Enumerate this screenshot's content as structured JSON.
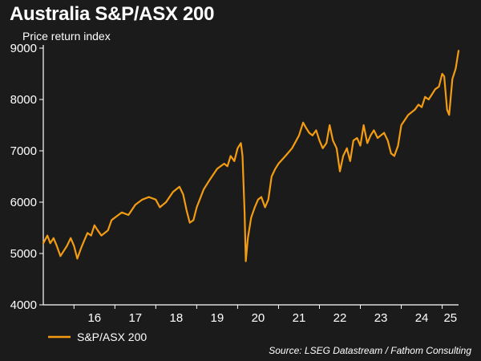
{
  "header": {
    "title": "Australia S&P/ASX 200",
    "subtitle": "Price return index"
  },
  "footer": {
    "source": "Source: LSEG Datastream / Fathom Consulting"
  },
  "colors": {
    "background": "#1b1b1b",
    "series": "#f39c12",
    "axis": "#ffffff",
    "grid": "#3a3a3a"
  },
  "chart_data": {
    "type": "line",
    "title": "Australia S&P/ASX 200",
    "subtitle": "Price return index",
    "xlabel": "",
    "ylabel": "",
    "ylim": [
      4000,
      9000
    ],
    "yticks": [
      4000,
      5000,
      6000,
      7000,
      8000,
      9000
    ],
    "xlim": [
      2015.25,
      2025.4
    ],
    "xticks": [
      {
        "label": "16",
        "x": 2016.5
      },
      {
        "label": "17",
        "x": 2017.5
      },
      {
        "label": "18",
        "x": 2018.5
      },
      {
        "label": "19",
        "x": 2019.5
      },
      {
        "label": "20",
        "x": 2020.5
      },
      {
        "label": "21",
        "x": 2021.5
      },
      {
        "label": "22",
        "x": 2022.5
      },
      {
        "label": "23",
        "x": 2023.5
      },
      {
        "label": "24",
        "x": 2024.5
      },
      {
        "label": "25",
        "x": 2025.2
      }
    ],
    "grid": true,
    "legend_position": "bottom-left",
    "series": [
      {
        "name": "S&P/ASX 200",
        "x": [
          2015.25,
          2015.35,
          2015.42,
          2015.5,
          2015.58,
          2015.67,
          2015.75,
          2015.83,
          2015.92,
          2016.0,
          2016.08,
          2016.17,
          2016.25,
          2016.33,
          2016.42,
          2016.5,
          2016.58,
          2016.67,
          2016.75,
          2016.83,
          2016.92,
          2017.0,
          2017.17,
          2017.33,
          2017.5,
          2017.67,
          2017.83,
          2018.0,
          2018.1,
          2018.25,
          2018.42,
          2018.58,
          2018.67,
          2018.75,
          2018.83,
          2018.92,
          2019.0,
          2019.17,
          2019.33,
          2019.5,
          2019.67,
          2019.75,
          2019.83,
          2019.92,
          2020.0,
          2020.08,
          2020.12,
          2020.17,
          2020.2,
          2020.25,
          2020.33,
          2020.42,
          2020.5,
          2020.58,
          2020.67,
          2020.75,
          2020.83,
          2020.92,
          2021.0,
          2021.17,
          2021.33,
          2021.5,
          2021.6,
          2021.67,
          2021.75,
          2021.83,
          2021.92,
          2022.0,
          2022.08,
          2022.17,
          2022.25,
          2022.33,
          2022.42,
          2022.5,
          2022.58,
          2022.67,
          2022.75,
          2022.83,
          2022.92,
          2023.0,
          2023.08,
          2023.17,
          2023.25,
          2023.33,
          2023.42,
          2023.5,
          2023.58,
          2023.67,
          2023.75,
          2023.83,
          2023.92,
          2024.0,
          2024.17,
          2024.33,
          2024.42,
          2024.5,
          2024.58,
          2024.67,
          2024.75,
          2024.83,
          2024.92,
          2025.0,
          2025.05,
          2025.12,
          2025.17,
          2025.25,
          2025.33,
          2025.4
        ],
        "values": [
          5200,
          5350,
          5200,
          5300,
          5150,
          4950,
          5050,
          5150,
          5300,
          5150,
          4900,
          5100,
          5250,
          5400,
          5350,
          5550,
          5450,
          5350,
          5400,
          5450,
          5650,
          5700,
          5800,
          5750,
          5950,
          6050,
          6100,
          6050,
          5900,
          6000,
          6200,
          6300,
          6150,
          5850,
          5600,
          5650,
          5900,
          6250,
          6450,
          6650,
          6750,
          6700,
          6900,
          6800,
          7050,
          7150,
          6900,
          5800,
          4850,
          5300,
          5700,
          5900,
          6050,
          6100,
          5900,
          6050,
          6500,
          6650,
          6750,
          6900,
          7050,
          7300,
          7550,
          7450,
          7350,
          7300,
          7400,
          7200,
          7050,
          7150,
          7500,
          7200,
          7050,
          6600,
          6900,
          7050,
          6800,
          7200,
          7250,
          7100,
          7500,
          7150,
          7300,
          7400,
          7250,
          7300,
          7350,
          7200,
          6950,
          6900,
          7100,
          7500,
          7700,
          7800,
          7900,
          7850,
          8050,
          8000,
          8100,
          8200,
          8250,
          8500,
          8450,
          7800,
          7700,
          8400,
          8600,
          8950
        ]
      }
    ]
  }
}
